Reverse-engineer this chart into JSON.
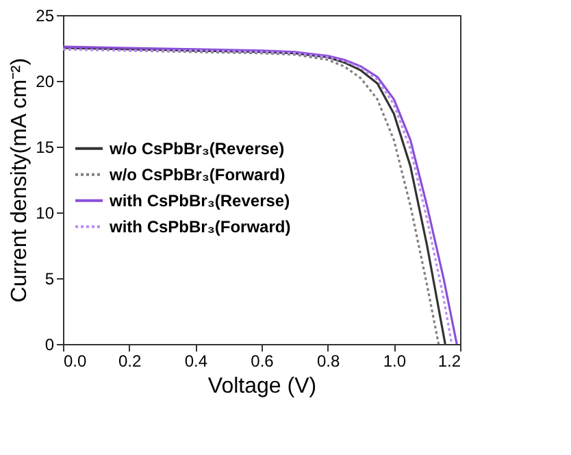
{
  "chart_data": {
    "type": "line",
    "xlabel": "Voltage (V)",
    "ylabel": "Current density(mA cm⁻²)",
    "series": [
      {
        "name": "w/o  CsPbBr₃(Reverse)",
        "color": "#333333",
        "line_style": "solid",
        "x": [
          0,
          0.2,
          0.4,
          0.6,
          0.7,
          0.8,
          0.85,
          0.9,
          0.95,
          1.0,
          1.05,
          1.1,
          1.155
        ],
        "values": [
          22.5,
          22.4,
          22.3,
          22.2,
          22.1,
          21.8,
          21.4,
          20.8,
          19.8,
          17.5,
          13.5,
          7.5,
          0
        ]
      },
      {
        "name": "w/o  CsPbBr₃(Forward)",
        "color": "#808080",
        "line_style": "dotted",
        "x": [
          0,
          0.2,
          0.4,
          0.6,
          0.7,
          0.8,
          0.85,
          0.9,
          0.95,
          1.0,
          1.05,
          1.1,
          1.135
        ],
        "values": [
          22.4,
          22.3,
          22.2,
          22.1,
          22.0,
          21.6,
          21.1,
          20.2,
          18.6,
          15.5,
          10.5,
          4.5,
          0
        ]
      },
      {
        "name": "with CsPbBr₃(Reverse)",
        "color": "#8a4fd8",
        "line_style": "solid",
        "x": [
          0,
          0.2,
          0.4,
          0.6,
          0.7,
          0.8,
          0.85,
          0.9,
          0.95,
          1.0,
          1.05,
          1.1,
          1.15,
          1.19
        ],
        "values": [
          22.6,
          22.5,
          22.4,
          22.3,
          22.2,
          21.9,
          21.6,
          21.1,
          20.3,
          18.6,
          15.5,
          10.5,
          5,
          0
        ]
      },
      {
        "name": "with CsPbBr₃(Forward)",
        "color": "#b98cf0",
        "line_style": "dotted",
        "x": [
          0,
          0.2,
          0.4,
          0.6,
          0.7,
          0.8,
          0.85,
          0.9,
          0.95,
          1.0,
          1.05,
          1.1,
          1.15,
          1.175
        ],
        "values": [
          22.4,
          22.3,
          22.3,
          22.2,
          22.1,
          21.8,
          21.5,
          21.0,
          20.1,
          18.2,
          14.8,
          9.5,
          3.5,
          0
        ]
      }
    ],
    "xlim": [
      0,
      1.2
    ],
    "ylim": [
      0,
      25
    ],
    "xticks": [
      {
        "value": 0,
        "label": "0.0"
      },
      0.2,
      0.4,
      0.6,
      0.8,
      {
        "value": 1,
        "label": "1.0"
      },
      1.2
    ],
    "yticks": [
      0,
      5,
      10,
      15,
      20,
      25
    ],
    "grid": false,
    "legend": "left",
    "marker": "none"
  }
}
